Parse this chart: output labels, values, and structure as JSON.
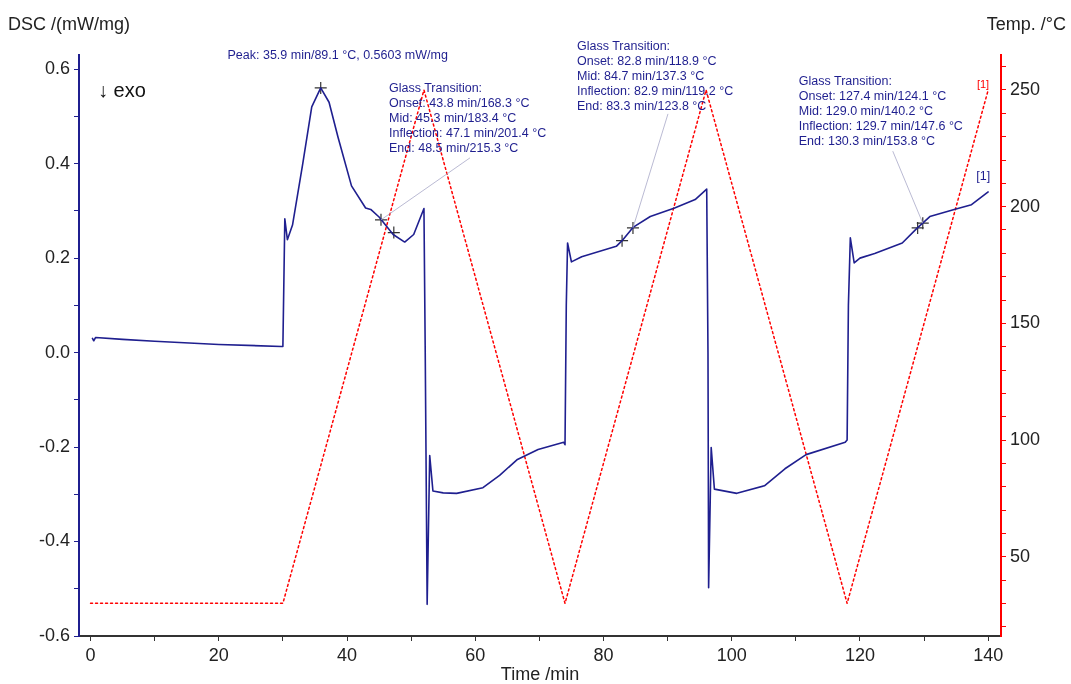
{
  "chart_data": {
    "type": "line",
    "xlabel": "Time /min",
    "ylabel": "DSC /(mW/mg)",
    "y2label": "Temp. /°C",
    "xlim": [
      -1.8,
      142
    ],
    "ylim": [
      -0.6,
      0.63
    ],
    "y2lim": [
      16,
      265
    ],
    "xticks": [
      0,
      {
        "value": 10,
        "label": null
      },
      20,
      {
        "value": 30,
        "label": null
      },
      40,
      {
        "value": 50,
        "label": null
      },
      60,
      {
        "value": 70,
        "label": null
      },
      80,
      {
        "value": 90,
        "label": null
      },
      100,
      {
        "value": 110,
        "label": null
      },
      120,
      {
        "value": 130,
        "label": null
      },
      140
    ],
    "yticks": [
      -0.6,
      {
        "value": -0.5,
        "label": null
      },
      -0.4,
      {
        "value": -0.3,
        "label": null
      },
      -0.2,
      {
        "value": -0.1,
        "label": null
      },
      {
        "value": 0,
        "label": "0.0"
      },
      {
        "value": 0.1,
        "label": null
      },
      0.2,
      {
        "value": 0.3,
        "label": null
      },
      0.4,
      {
        "value": 0.5,
        "label": null
      },
      0.6
    ],
    "y2ticks": [
      {
        "value": 20,
        "label": null
      },
      {
        "value": 30,
        "label": null
      },
      {
        "value": 40,
        "label": null
      },
      50,
      {
        "value": 60,
        "label": null
      },
      {
        "value": 70,
        "label": null
      },
      {
        "value": 80,
        "label": null
      },
      {
        "value": 90,
        "label": null
      },
      100,
      {
        "value": 110,
        "label": null
      },
      {
        "value": 120,
        "label": null
      },
      {
        "value": 130,
        "label": null
      },
      {
        "value": 140,
        "label": null
      },
      150,
      {
        "value": 160,
        "label": null
      },
      {
        "value": 170,
        "label": null
      },
      {
        "value": 180,
        "label": null
      },
      {
        "value": 190,
        "label": null
      },
      200,
      {
        "value": 210,
        "label": null
      },
      {
        "value": 220,
        "label": null
      },
      {
        "value": 230,
        "label": null
      },
      {
        "value": 240,
        "label": null
      },
      250,
      {
        "value": 260,
        "label": null
      }
    ],
    "grid": false,
    "legend": false,
    "series": [
      {
        "type": "line",
        "color": "#1f1f8f",
        "marker": "none",
        "line_style": "solid",
        "x": [
          0.3,
          0.5,
          0.8,
          5,
          10,
          20,
          29.8,
          30.0,
          30.3,
          30.7,
          31.5,
          33.1,
          34.5,
          35.9,
          37.2,
          38.6,
          40.7,
          42.9,
          43.7,
          45.0,
          47.2,
          49.0,
          50.4,
          52.0,
          52.2,
          52.5,
          52.9,
          53.4,
          55,
          57.1,
          61.2,
          63.8,
          66.5,
          69.8,
          73.8,
          74.0,
          74.2,
          74.4,
          75.0,
          76.6,
          82.0,
          82.9,
          84.6,
          87.3,
          91.1,
          94.3,
          96.1,
          96.3,
          96.4,
          96.8,
          97.3,
          100.8,
          105.1,
          108.3,
          111.6,
          117.7,
          118.0,
          118.2,
          118.5,
          119.1,
          120,
          122.3,
          126.6,
          128.8,
          130.9,
          134.7,
          137.4,
          140
        ],
        "values": [
          0.03,
          0.025,
          0.032,
          0.028,
          0.024,
          0.017,
          0.013,
          0.013,
          0.283,
          0.239,
          0.27,
          0.4,
          0.52,
          0.5603,
          0.53,
          0.456,
          0.353,
          0.306,
          0.303,
          0.287,
          0.25,
          0.234,
          0.25,
          0.305,
          0.0,
          -0.533,
          -0.218,
          -0.293,
          -0.297,
          -0.298,
          -0.286,
          -0.26,
          -0.227,
          -0.205,
          -0.19,
          -0.195,
          0.1,
          0.232,
          0.192,
          0.203,
          0.225,
          0.237,
          0.265,
          0.288,
          0.306,
          0.324,
          0.346,
          0.0,
          -0.498,
          -0.201,
          -0.289,
          -0.298,
          -0.282,
          -0.246,
          -0.216,
          -0.19,
          -0.185,
          0.1,
          0.243,
          0.19,
          0.2,
          0.21,
          0.232,
          0.262,
          0.288,
          0.303,
          0.313,
          0.34
        ]
      },
      {
        "type": "line",
        "axis": "y2",
        "color": "#ff0000",
        "marker": "none",
        "line_style": "dotted",
        "x": [
          0,
          30,
          52,
          74,
          96,
          118,
          140
        ],
        "values": [
          30,
          30,
          250,
          30,
          250,
          30,
          250
        ]
      },
      {
        "type": "scatter",
        "color": "#333333",
        "marker": "cross",
        "x": [
          35.9,
          45.3,
          47.3,
          82.9,
          84.6,
          129.0,
          129.8
        ],
        "values": [
          0.5603,
          0.281,
          0.254,
          0.237,
          0.264,
          0.264,
          0.274
        ]
      }
    ],
    "annotations": [
      {
        "text": "Peak: 35.9 min/89.1 °C, 0.5603 mW/mg",
        "x": 35.9,
        "y": 0.5603
      },
      {
        "text": "Glass Transition:\nOnset: 43.8 min/168.3 °C\nMid: 45.3 min/183.4 °C\nInflection: 47.1 min/201.4 °C\nEnd: 48.5 min/215.3 °C",
        "x": 45.3,
        "y": 0.281
      },
      {
        "text": "Glass Transition:\nOnset: 82.8 min/118.9 °C\nMid: 84.7 min/137.3 °C\nInflection: 82.9 min/119.2 °C\nEnd: 83.3 min/123.8 °C",
        "x": 84.6,
        "y": 0.264
      },
      {
        "text": "Glass Transition:\nOnset: 127.4 min/124.1 °C\nMid: 129.0 min/140.2 °C\nInflection: 129.7 min/147.6 °C\nEnd: 130.3 min/153.8 °C",
        "x": 129.8,
        "y": 0.274
      },
      {
        "text": "[1]",
        "x": 140,
        "y": 0.34
      },
      "↓ exo",
      "[1]"
    ]
  }
}
